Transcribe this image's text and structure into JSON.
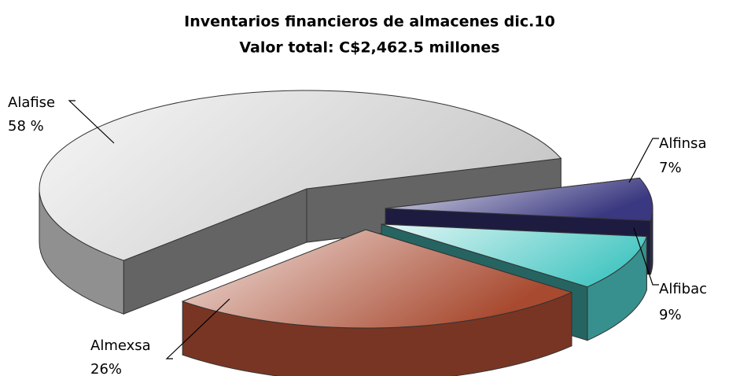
{
  "chart_data": {
    "type": "pie3d",
    "title": "Inventarios financieros de almacenes dic.10",
    "subtitle": "Valor total: C$2,462.5 millones",
    "categories": [
      "Alafise",
      "Alfinsa",
      "Alfibac",
      "Almexsa"
    ],
    "values": [
      58,
      7,
      9,
      26
    ],
    "value_labels": [
      "58 %",
      "7%",
      "9%",
      "26%"
    ],
    "colors": [
      "#c8c8c8",
      "#3a3880",
      "#4cc8c4",
      "#a84a30"
    ]
  }
}
